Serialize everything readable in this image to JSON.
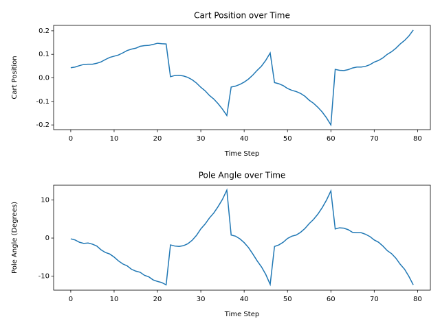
{
  "chart_data": [
    {
      "type": "line",
      "title": "Cart Position over Time",
      "x_label": "Time Step",
      "y_label": "Cart Position",
      "x": [
        0,
        1,
        2,
        3,
        4,
        5,
        6,
        7,
        8,
        9,
        10,
        11,
        12,
        13,
        14,
        15,
        16,
        17,
        18,
        19,
        20,
        21,
        22,
        23,
        24,
        25,
        26,
        27,
        28,
        29,
        30,
        31,
        32,
        33,
        34,
        35,
        36,
        37,
        38,
        39,
        40,
        41,
        42,
        43,
        44,
        45,
        46,
        47,
        48,
        49,
        50,
        51,
        52,
        53,
        54,
        55,
        56,
        57,
        58,
        59,
        60,
        61,
        62,
        63,
        64,
        65,
        66,
        67,
        68,
        69,
        70,
        71,
        72,
        73,
        74,
        75,
        76,
        77,
        78,
        79
      ],
      "series": [
        {
          "name": "Cart Position",
          "color": "#1f77b4",
          "values": [
            0.043,
            0.046,
            0.052,
            0.057,
            0.058,
            0.058,
            0.062,
            0.068,
            0.078,
            0.087,
            0.092,
            0.097,
            0.106,
            0.116,
            0.122,
            0.126,
            0.134,
            0.137,
            0.138,
            0.142,
            0.147,
            0.145,
            0.144,
            0.005,
            0.01,
            0.011,
            0.008,
            0.002,
            -0.008,
            -0.022,
            -0.04,
            -0.055,
            -0.075,
            -0.09,
            -0.11,
            -0.133,
            -0.16,
            -0.039,
            -0.035,
            -0.028,
            -0.018,
            -0.005,
            0.012,
            0.032,
            0.05,
            0.075,
            0.106,
            -0.02,
            -0.025,
            -0.033,
            -0.045,
            -0.053,
            -0.058,
            -0.066,
            -0.078,
            -0.095,
            -0.108,
            -0.125,
            -0.145,
            -0.17,
            -0.2,
            0.036,
            0.032,
            0.031,
            0.035,
            0.042,
            0.046,
            0.046,
            0.049,
            0.056,
            0.067,
            0.074,
            0.085,
            0.1,
            0.111,
            0.126,
            0.144,
            0.159,
            0.178,
            0.203
          ]
        }
      ],
      "xlim": [
        -3.95,
        82.95
      ],
      "xticks": [
        0,
        10,
        20,
        30,
        40,
        50,
        60,
        70,
        80
      ],
      "ylim": [
        -0.22,
        0.223
      ],
      "yticks": [
        -0.2,
        -0.1,
        {
          "value": 0,
          "label": "0.0"
        },
        0.1,
        0.2
      ]
    },
    {
      "type": "line",
      "title": "Pole Angle over Time",
      "x_label": "Time Step",
      "y_label": "Pole Angle (Degrees)",
      "x": [
        0,
        1,
        2,
        3,
        4,
        5,
        6,
        7,
        8,
        9,
        10,
        11,
        12,
        13,
        14,
        15,
        16,
        17,
        18,
        19,
        20,
        21,
        22,
        23,
        24,
        25,
        26,
        27,
        28,
        29,
        30,
        31,
        32,
        33,
        34,
        35,
        36,
        37,
        38,
        39,
        40,
        41,
        42,
        43,
        44,
        45,
        46,
        47,
        48,
        49,
        50,
        51,
        52,
        53,
        54,
        55,
        56,
        57,
        58,
        59,
        60,
        61,
        62,
        63,
        64,
        65,
        66,
        67,
        68,
        69,
        70,
        71,
        72,
        73,
        74,
        75,
        76,
        77,
        78,
        79
      ],
      "series": [
        {
          "name": "Pole Angle",
          "color": "#1f77b4",
          "values": [
            -0.2,
            -0.5,
            -1.1,
            -1.4,
            -1.3,
            -1.6,
            -2.1,
            -3.1,
            -3.8,
            -4.2,
            -5.0,
            -6.0,
            -6.8,
            -7.3,
            -8.2,
            -8.7,
            -9.0,
            -9.8,
            -10.2,
            -11.0,
            -11.4,
            -11.7,
            -12.3,
            -1.8,
            -2.1,
            -2.2,
            -2.0,
            -1.5,
            -0.6,
            0.7,
            2.4,
            3.7,
            5.3,
            6.6,
            8.3,
            10.2,
            12.6,
            0.8,
            0.5,
            -0.2,
            -1.2,
            -2.5,
            -4.2,
            -6.0,
            -7.6,
            -9.6,
            -12.2,
            -2.2,
            -1.8,
            -1.1,
            -0.1,
            0.5,
            0.8,
            1.5,
            2.5,
            3.8,
            4.9,
            6.3,
            8.0,
            10.0,
            12.4,
            2.4,
            2.7,
            2.6,
            2.2,
            1.5,
            1.4,
            1.4,
            1.0,
            0.4,
            -0.5,
            -1.1,
            -2.1,
            -3.3,
            -4.1,
            -5.3,
            -6.9,
            -8.2,
            -10.1,
            -12.3
          ]
        }
      ],
      "xlim": [
        -3.95,
        82.95
      ],
      "xticks": [
        0,
        10,
        20,
        30,
        40,
        50,
        60,
        70,
        80
      ],
      "ylim": [
        -13.7,
        13.9
      ],
      "yticks": [
        -10,
        0,
        10
      ]
    }
  ]
}
